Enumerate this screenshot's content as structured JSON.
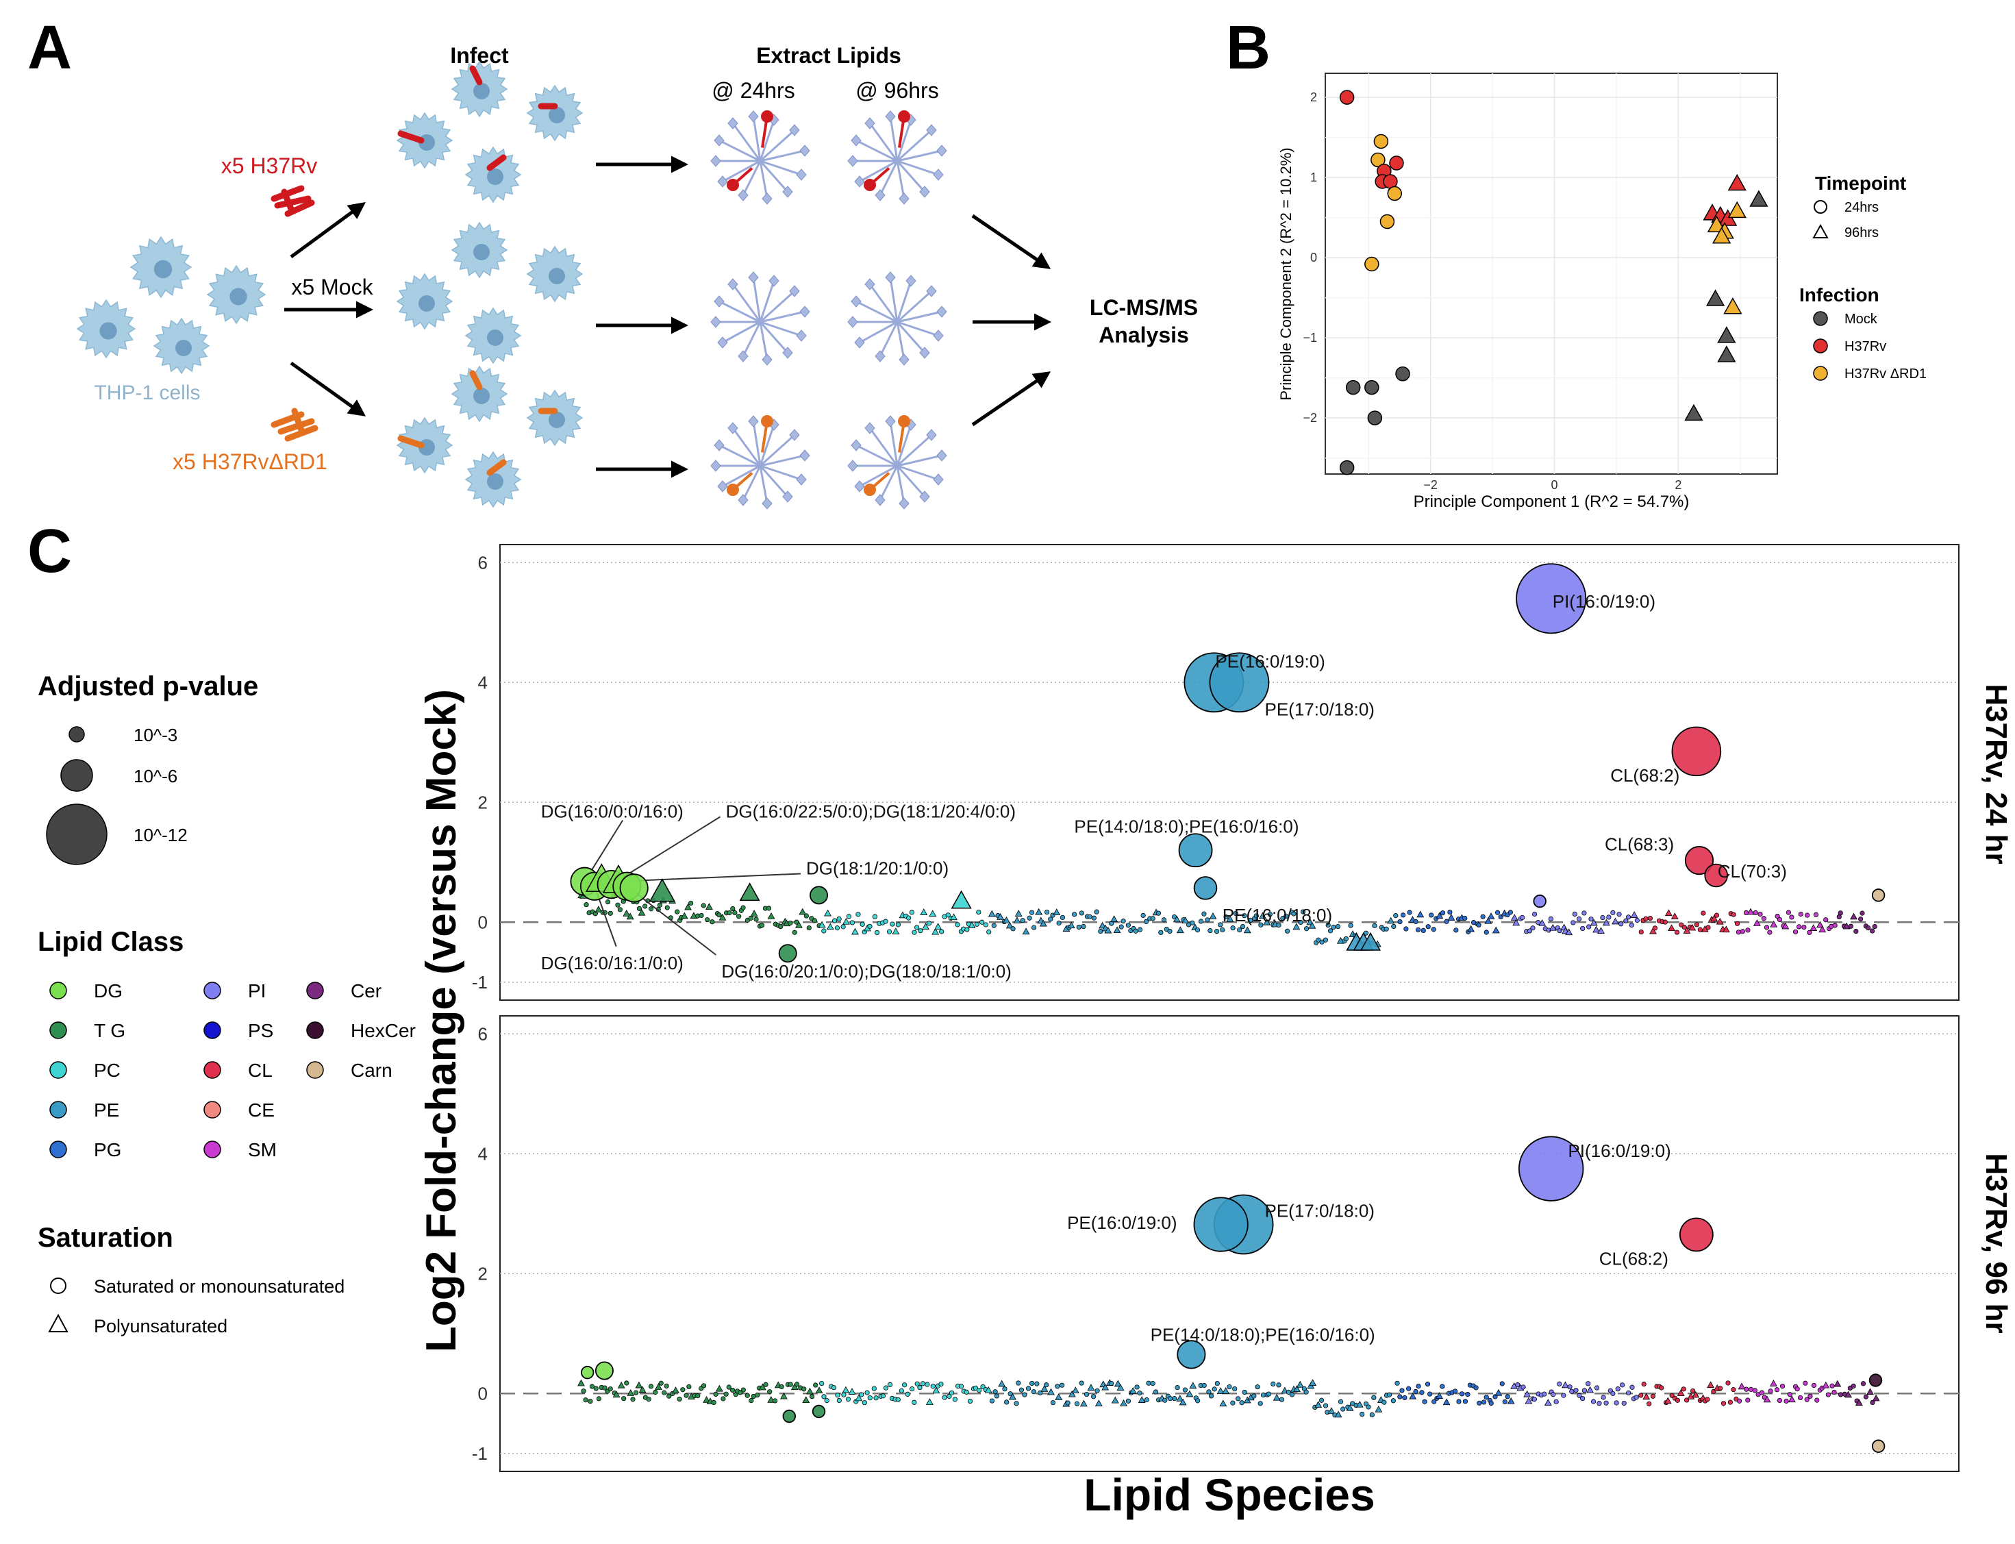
{
  "panel_a": {
    "letter": "A",
    "infect_label": "Infect",
    "extract_label": "Extract Lipids",
    "time_24": "@ 24hrs",
    "time_96": "@ 96hrs",
    "cells_label": "THP-1 cells",
    "cond_h37rv": "x5 H37Rv",
    "cond_mock": "x5 Mock",
    "cond_rd1": "x5 H37RvΔRD1",
    "lcms_line1": "LC-MS/MS",
    "lcms_line2": "Analysis",
    "colors": {
      "h37rv": "#d0191f",
      "rd1": "#e3711f",
      "cell": "#a9cde3",
      "lipid": "#a8b8e0",
      "text_cells": "#8fb3cc"
    }
  },
  "panel_b": {
    "letter": "B",
    "xlabel": "Principle Component 1 (R^2 = 54.7%)",
    "ylabel": "Principle Component 2 (R^2 = 10.2%)",
    "legend_timepoint_title": "Timepoint",
    "legend_timepoints": [
      "24hrs",
      "96hrs"
    ],
    "legend_infection_title": "Infection",
    "legend_infections": [
      "Mock",
      "H37Rv",
      "H37Rv ΔRD1"
    ],
    "colors": {
      "Mock": "#555555",
      "H37Rv": "#e03030",
      "RD1": "#f0b030"
    }
  },
  "panel_c": {
    "letter": "C",
    "ylabel": "Log2 Fold-change (versus Mock)",
    "xlabel": "Lipid Species",
    "strip_top": "H37Rv, 24 hr",
    "strip_bottom": "H37Rv, 96 hr",
    "legend_pvalue_title": "Adjusted p-value",
    "legend_pvalues": [
      "10^-3",
      "10^-6",
      "10^-12"
    ],
    "legend_class_title": "Lipid Class",
    "legend_classes": [
      {
        "name": "DG",
        "color": "#7be04f"
      },
      {
        "name": "T  G",
        "color": "#2e8f50"
      },
      {
        "name": "PC",
        "color": "#3fd3d3"
      },
      {
        "name": "PE",
        "color": "#3a9bc4"
      },
      {
        "name": "PG",
        "color": "#2f6fd0"
      },
      {
        "name": "PI",
        "color": "#7f7ff2"
      },
      {
        "name": "PS",
        "color": "#1414d0"
      },
      {
        "name": "CL",
        "color": "#e0304f"
      },
      {
        "name": "CE",
        "color": "#f08a80"
      },
      {
        "name": "SM",
        "color": "#c83ad0"
      },
      {
        "name": "Cer",
        "color": "#7a2a80"
      },
      {
        "name": "HexCer",
        "color": "#3a1030"
      },
      {
        "name": "Carn",
        "color": "#d4b890"
      }
    ],
    "legend_saturation_title": "Saturation",
    "legend_saturation": [
      "Saturated or monounsaturated",
      "Polyunsaturated"
    ]
  },
  "chart_data": [
    {
      "type": "scatter",
      "panel": "B",
      "title": "",
      "xlabel": "Principle Component 1 (R^2 = 54.7%)",
      "ylabel": "Principle Component 2 (R^2 = 10.2%)",
      "xlim": [
        -3.7,
        3.6
      ],
      "ylim": [
        -2.7,
        2.3
      ],
      "x_ticks": [
        -2,
        0,
        2
      ],
      "y_ticks": [
        -2,
        -1,
        0,
        1,
        2
      ],
      "grid": true,
      "legend_position": "right",
      "points": [
        {
          "x": -3.35,
          "y": 2.0,
          "infection": "H37Rv",
          "time": "24hrs"
        },
        {
          "x": -2.8,
          "y": 1.45,
          "infection": "RD1",
          "time": "24hrs"
        },
        {
          "x": -2.85,
          "y": 1.22,
          "infection": "RD1",
          "time": "24hrs"
        },
        {
          "x": -2.55,
          "y": 1.18,
          "infection": "H37Rv",
          "time": "24hrs"
        },
        {
          "x": -2.75,
          "y": 1.08,
          "infection": "H37Rv",
          "time": "24hrs"
        },
        {
          "x": -2.78,
          "y": 0.95,
          "infection": "H37Rv",
          "time": "24hrs"
        },
        {
          "x": -2.65,
          "y": 0.95,
          "infection": "H37Rv",
          "time": "24hrs"
        },
        {
          "x": -2.58,
          "y": 0.8,
          "infection": "RD1",
          "time": "24hrs"
        },
        {
          "x": -2.7,
          "y": 0.45,
          "infection": "RD1",
          "time": "24hrs"
        },
        {
          "x": -2.95,
          "y": -0.08,
          "infection": "RD1",
          "time": "24hrs"
        },
        {
          "x": -3.25,
          "y": -1.62,
          "infection": "Mock",
          "time": "24hrs"
        },
        {
          "x": -2.95,
          "y": -1.62,
          "infection": "Mock",
          "time": "24hrs"
        },
        {
          "x": -2.45,
          "y": -1.45,
          "infection": "Mock",
          "time": "24hrs"
        },
        {
          "x": -2.9,
          "y": -2.0,
          "infection": "Mock",
          "time": "24hrs"
        },
        {
          "x": -3.35,
          "y": -2.62,
          "infection": "Mock",
          "time": "24hrs"
        },
        {
          "x": 2.95,
          "y": 0.92,
          "infection": "H37Rv",
          "time": "96hrs"
        },
        {
          "x": 3.3,
          "y": 0.72,
          "infection": "Mock",
          "time": "96hrs"
        },
        {
          "x": 2.55,
          "y": 0.55,
          "infection": "H37Rv",
          "time": "96hrs"
        },
        {
          "x": 2.68,
          "y": 0.52,
          "infection": "H37Rv",
          "time": "96hrs"
        },
        {
          "x": 2.8,
          "y": 0.48,
          "infection": "H37Rv",
          "time": "96hrs"
        },
        {
          "x": 2.95,
          "y": 0.58,
          "infection": "RD1",
          "time": "96hrs"
        },
        {
          "x": 2.62,
          "y": 0.4,
          "infection": "RD1",
          "time": "96hrs"
        },
        {
          "x": 2.75,
          "y": 0.32,
          "infection": "RD1",
          "time": "96hrs"
        },
        {
          "x": 2.7,
          "y": 0.26,
          "infection": "RD1",
          "time": "96hrs"
        },
        {
          "x": 2.6,
          "y": -0.52,
          "infection": "Mock",
          "time": "96hrs"
        },
        {
          "x": 2.88,
          "y": -0.62,
          "infection": "RD1",
          "time": "96hrs"
        },
        {
          "x": 2.78,
          "y": -0.98,
          "infection": "Mock",
          "time": "96hrs"
        },
        {
          "x": 2.78,
          "y": -1.22,
          "infection": "Mock",
          "time": "96hrs"
        },
        {
          "x": 2.25,
          "y": -1.95,
          "infection": "Mock",
          "time": "96hrs"
        }
      ]
    },
    {
      "type": "scatter",
      "panel": "C-top",
      "facet": "H37Rv, 24 hr",
      "title": "",
      "xlabel": "Lipid Species",
      "ylabel": "Log2 Fold-change (versus Mock)",
      "xlim": [
        0,
        1000
      ],
      "ylim": [
        -1.3,
        6.3
      ],
      "y_ticks": [
        -1,
        0,
        2,
        4,
        6
      ],
      "labels": [
        {
          "text": "PI(16:0/19:0)",
          "x": 729,
          "y": 5.35
        },
        {
          "text": "PE(16:0/19:0)",
          "x": 490,
          "y": 4.35
        },
        {
          "text": "PE(17:0/18:0)",
          "x": 525,
          "y": 3.55
        },
        {
          "text": "CL(68:2)",
          "x": 770,
          "y": 2.45
        },
        {
          "text": "PE(14:0/18:0);PE(16:0/16:0)",
          "x": 390,
          "y": 1.6
        },
        {
          "text": "CL(68:3)",
          "x": 766,
          "y": 1.3
        },
        {
          "text": "CL(70:3)",
          "x": 846,
          "y": 0.85
        },
        {
          "text": "PE(16:0/18:0)",
          "x": 495,
          "y": 0.12
        },
        {
          "text": "DG(16:0/0:0/16:0)",
          "x": 12,
          "y": 1.85
        },
        {
          "text": "DG(16:0/22:5/0:0);DG(18:1/20:4/0:0)",
          "x": 143,
          "y": 1.85
        },
        {
          "text": "DG(18:1/20:1/0:0)",
          "x": 200,
          "y": 0.9
        },
        {
          "text": "DG(16:0/16:1/0:0)",
          "x": 12,
          "y": -0.68
        },
        {
          "text": "DG(16:0/20:1/0:0);DG(18:0/18:1/0:0)",
          "x": 140,
          "y": -0.82
        }
      ],
      "points": [
        {
          "x": 728,
          "y": 5.4,
          "class": "PI",
          "p": 12,
          "shape": "circle"
        },
        {
          "x": 489,
          "y": 4.0,
          "class": "PE",
          "p": 10,
          "shape": "circle"
        },
        {
          "x": 507,
          "y": 4.0,
          "class": "PE",
          "p": 10,
          "shape": "circle"
        },
        {
          "x": 831,
          "y": 2.85,
          "class": "CL",
          "p": 8,
          "shape": "circle"
        },
        {
          "x": 476,
          "y": 1.2,
          "class": "PE",
          "p": 5,
          "shape": "circle"
        },
        {
          "x": 483,
          "y": 0.57,
          "class": "PE",
          "p": 3,
          "shape": "circle"
        },
        {
          "x": 833,
          "y": 1.03,
          "class": "CL",
          "p": 4,
          "shape": "circle"
        },
        {
          "x": 845,
          "y": 0.78,
          "class": "CL",
          "p": 3,
          "shape": "circle"
        },
        {
          "x": 43,
          "y": 0.68,
          "class": "DG",
          "p": 4,
          "shape": "circle"
        },
        {
          "x": 50,
          "y": 0.6,
          "class": "DG",
          "p": 4,
          "shape": "circle"
        },
        {
          "x": 55,
          "y": 0.7,
          "class": "DG",
          "p": 4,
          "shape": "triangle"
        },
        {
          "x": 62,
          "y": 0.63,
          "class": "DG",
          "p": 4,
          "shape": "circle"
        },
        {
          "x": 67,
          "y": 0.68,
          "class": "DG",
          "p": 4,
          "shape": "triangle"
        },
        {
          "x": 73,
          "y": 0.6,
          "class": "DG",
          "p": 4,
          "shape": "circle"
        },
        {
          "x": 78,
          "y": 0.57,
          "class": "DG",
          "p": 4,
          "shape": "circle"
        },
        {
          "x": 98,
          "y": 0.5,
          "class": "TG",
          "p": 3,
          "shape": "triangle"
        },
        {
          "x": 160,
          "y": 0.48,
          "class": "TG",
          "p": 2,
          "shape": "triangle"
        },
        {
          "x": 209,
          "y": 0.45,
          "class": "TG",
          "p": 2,
          "shape": "circle"
        },
        {
          "x": 187,
          "y": -0.52,
          "class": "TG",
          "p": 2,
          "shape": "circle"
        },
        {
          "x": 310,
          "y": 0.35,
          "class": "PC",
          "p": 2,
          "shape": "triangle"
        },
        {
          "x": 720,
          "y": 0.35,
          "class": "PI",
          "p": 1,
          "shape": "circle"
        },
        {
          "x": 960,
          "y": 0.45,
          "class": "Carn",
          "p": 1,
          "shape": "circle"
        },
        {
          "x": 590,
          "y": -0.35,
          "class": "PE",
          "p": 2,
          "shape": "triangle"
        },
        {
          "x": 595,
          "y": -0.35,
          "class": "PE",
          "p": 2,
          "shape": "triangle"
        },
        {
          "x": 600,
          "y": -0.35,
          "class": "PE",
          "p": 2,
          "shape": "triangle"
        }
      ]
    },
    {
      "type": "scatter",
      "panel": "C-bottom",
      "facet": "H37Rv, 96 hr",
      "title": "",
      "xlabel": "Lipid Species",
      "ylabel": "Log2 Fold-change (versus Mock)",
      "xlim": [
        0,
        1000
      ],
      "ylim": [
        -1.3,
        6.3
      ],
      "y_ticks": [
        -1,
        0,
        2,
        4,
        6
      ],
      "labels": [
        {
          "text": "PI(16:0/19:0)",
          "x": 740,
          "y": 4.05
        },
        {
          "text": "PE(16:0/19:0)",
          "x": 385,
          "y": 2.85
        },
        {
          "text": "PE(17:0/18:0)",
          "x": 525,
          "y": 3.05
        },
        {
          "text": "CL(68:2)",
          "x": 762,
          "y": 2.25
        },
        {
          "text": "PE(14:0/18:0);PE(16:0/16:0)",
          "x": 444,
          "y": 0.98
        }
      ],
      "points": [
        {
          "x": 728,
          "y": 3.75,
          "class": "PI",
          "p": 11,
          "shape": "circle"
        },
        {
          "x": 494,
          "y": 2.82,
          "class": "PE",
          "p": 9,
          "shape": "circle"
        },
        {
          "x": 510,
          "y": 2.82,
          "class": "PE",
          "p": 10,
          "shape": "circle"
        },
        {
          "x": 831,
          "y": 2.65,
          "class": "CL",
          "p": 5,
          "shape": "circle"
        },
        {
          "x": 473,
          "y": 0.65,
          "class": "PE",
          "p": 4,
          "shape": "circle"
        },
        {
          "x": 57,
          "y": 0.38,
          "class": "DG",
          "p": 2,
          "shape": "circle"
        },
        {
          "x": 45,
          "y": 0.35,
          "class": "DG",
          "p": 1,
          "shape": "circle"
        },
        {
          "x": 188,
          "y": -0.38,
          "class": "TG",
          "p": 1,
          "shape": "circle"
        },
        {
          "x": 209,
          "y": -0.3,
          "class": "TG",
          "p": 1,
          "shape": "circle"
        },
        {
          "x": 958,
          "y": 0.22,
          "class": "HexCer",
          "p": 1,
          "shape": "circle"
        },
        {
          "x": 960,
          "y": -0.88,
          "class": "Carn",
          "p": 1,
          "shape": "circle"
        }
      ]
    }
  ]
}
